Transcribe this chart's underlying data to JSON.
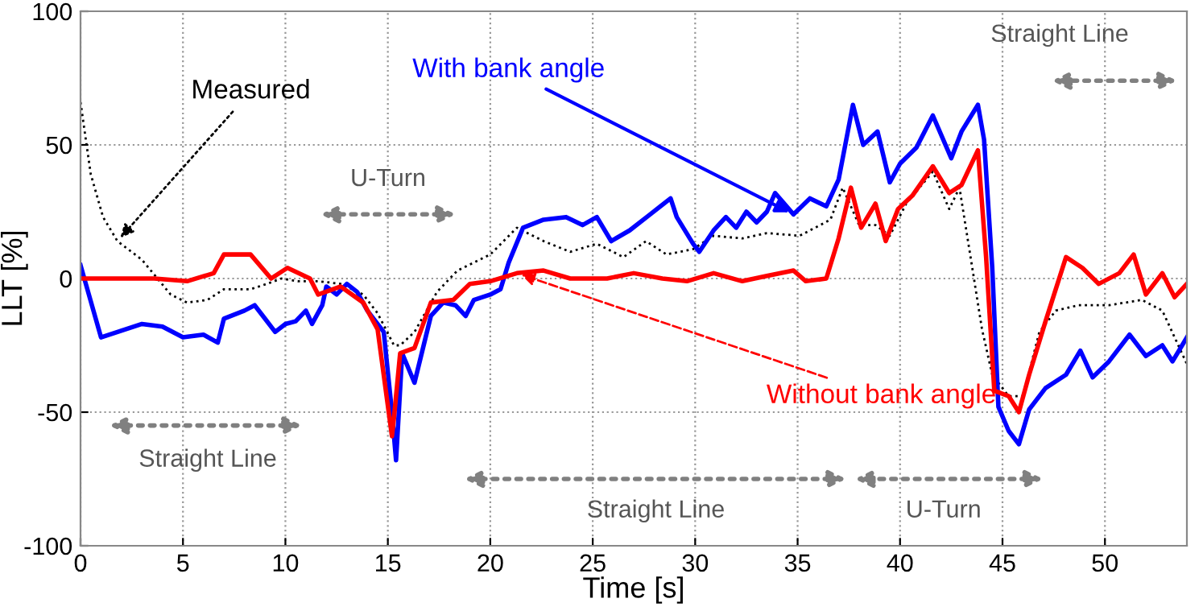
{
  "chart_data": {
    "type": "line",
    "xlabel": "Time [s]",
    "ylabel": "LLT [%]",
    "xlim": [
      0,
      54
    ],
    "xticks": [
      0,
      5,
      10,
      15,
      20,
      25,
      30,
      35,
      40,
      45,
      50
    ],
    "ylim": [
      -100,
      100
    ],
    "yticks": [
      -100,
      -50,
      0,
      50,
      100
    ],
    "grid": true,
    "legend": false,
    "series": [
      {
        "name": "Measured",
        "color": "#000000",
        "line_style": "dotted",
        "x": [
          0,
          0.5,
          1.1,
          1.8,
          3,
          4.4,
          5.2,
          6.2,
          7,
          8.3,
          9.1,
          9.8,
          10.6,
          11.6,
          12.7,
          13.8,
          14.5,
          15.3,
          15.6,
          16.3,
          17.4,
          18.4,
          20,
          21.3,
          22.6,
          23.9,
          25.2,
          26.5,
          27.6,
          28.6,
          29.9,
          30.9,
          32.3,
          33.5,
          35.1,
          36.6,
          37.2,
          38,
          38.8,
          39.5,
          40.3,
          41.6,
          42.4,
          42.9,
          43.4,
          44,
          44.5,
          45.3,
          46,
          46.8,
          47.6,
          48.7,
          50.2,
          51.8,
          52.8,
          54
        ],
        "values": [
          66,
          39,
          23,
          14,
          7,
          -6,
          -9,
          -8,
          -4,
          -4,
          -2,
          0,
          -1,
          -1,
          -2,
          -6,
          -13,
          -25,
          -25,
          -20,
          -5,
          3,
          9,
          19,
          14,
          10,
          13,
          8,
          14,
          9,
          11,
          16,
          15,
          17,
          16,
          22,
          34,
          20,
          20,
          16,
          28,
          40,
          26,
          34,
          10,
          -19,
          -36,
          -44,
          -44,
          -20,
          -12,
          -10,
          -10,
          -8,
          -12,
          -32
        ]
      },
      {
        "name": "With bank angle",
        "color": "#0000ff",
        "line_style": "solid",
        "x": [
          0,
          1,
          3,
          4,
          5,
          6,
          6.7,
          7,
          8,
          8.5,
          9,
          9.5,
          10,
          10.5,
          11,
          11.3,
          11.8,
          12,
          12.5,
          13,
          13.5,
          14,
          14.8,
          15.2,
          15.4,
          15.7,
          16.3,
          17.1,
          17.7,
          18.3,
          18.8,
          19.2,
          20,
          20.5,
          20.9,
          21.6,
          22.6,
          23.7,
          24.5,
          25.2,
          25.9,
          26.8,
          27.8,
          28.8,
          29.1,
          29.9,
          30.2,
          30.9,
          31.5,
          32,
          32.5,
          33,
          33.5,
          33.9,
          34.8,
          35.6,
          36.4,
          37,
          37.7,
          38.2,
          38.9,
          39.5,
          40,
          40.8,
          41.6,
          42.5,
          43,
          43.8,
          44.1,
          44.5,
          44.8,
          45.3,
          45.8,
          46.3,
          47.1,
          48.1,
          48.8,
          49.4,
          50.2,
          51.2,
          52,
          52.8,
          53.3,
          54
        ],
        "values": [
          5,
          -22,
          -17,
          -18,
          -22,
          -21,
          -24,
          -15,
          -12,
          -10,
          -15,
          -20,
          -17,
          -16,
          -12,
          -17,
          -10,
          -3,
          -6,
          -2,
          -5,
          -12,
          -20,
          -50,
          -68,
          -28,
          -39,
          -14,
          -9,
          -10,
          -14,
          -8,
          -6,
          -4,
          6,
          19,
          22,
          23,
          20,
          23,
          14,
          18,
          24,
          30,
          23,
          13,
          10,
          18,
          23,
          19,
          25,
          21,
          25,
          32,
          24,
          30,
          27,
          37,
          65,
          50,
          55,
          36,
          43,
          49,
          61,
          45,
          55,
          65,
          52,
          4,
          -48,
          -57,
          -62,
          -49,
          -41,
          -36,
          -27,
          -37,
          -31,
          -21,
          -29,
          -25,
          -31,
          -22
        ]
      },
      {
        "name": "Without bank angle",
        "color": "#ff0000",
        "line_style": "solid",
        "x": [
          0,
          3.6,
          5.2,
          6.5,
          7,
          8.3,
          9.3,
          10.1,
          11.2,
          11.6,
          12.7,
          13.8,
          14.5,
          15.2,
          15.3,
          15.6,
          16.3,
          17.1,
          18.2,
          19,
          20,
          21.3,
          22.6,
          23.9,
          25.7,
          27,
          28.4,
          29.6,
          30.9,
          32.3,
          33.5,
          34.8,
          35.4,
          36.4,
          37,
          37.6,
          38.1,
          38.8,
          39.3,
          39.9,
          40.6,
          41.6,
          42.4,
          43,
          43.8,
          44.2,
          44.6,
          45.3,
          45.8,
          46.3,
          47.1,
          48.1,
          48.9,
          49.7,
          50.7,
          51.4,
          52,
          52.8,
          53.4,
          54
        ],
        "values": [
          0,
          0,
          -1,
          2,
          9,
          9,
          0,
          4,
          0,
          -6,
          -3,
          -9,
          -19,
          -59,
          -52,
          -28,
          -26,
          -9,
          -8,
          -2,
          -1,
          2,
          3,
          0,
          0,
          2,
          0,
          -1,
          2,
          -1,
          1,
          3,
          -1,
          0,
          15,
          34,
          19,
          28,
          14,
          26,
          31,
          42,
          32,
          35,
          48,
          8,
          -42,
          -44,
          -50,
          -36,
          -16,
          8,
          4,
          -2,
          2,
          9,
          -6,
          2,
          -7,
          -2
        ]
      }
    ],
    "annotations": [
      "Straight Line",
      "U-Turn",
      "Straight Line",
      "U-Turn",
      "Straight Line"
    ]
  }
}
